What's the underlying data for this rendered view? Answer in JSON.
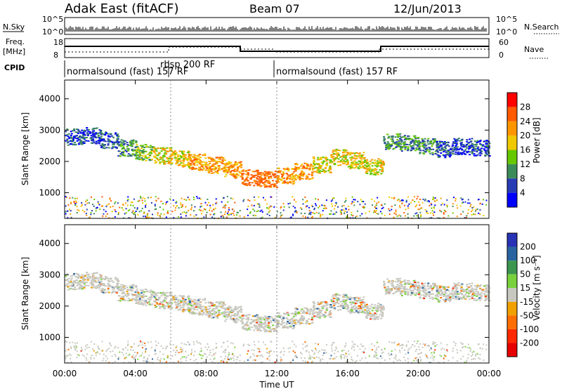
{
  "header": {
    "station": "Adak East (fitACF)",
    "beam": "Beam 07",
    "date": "12/Jun/2013"
  },
  "top_panels": {
    "nsky_label": "N.Sky",
    "nsearch_label": "N.Search",
    "nsky_ticks": [
      "10^5",
      "10^0"
    ],
    "nsky_right_ticks": [
      "10^5",
      "10^0"
    ],
    "freq_label_line1": "Freq.",
    "freq_label_line2": "[MHz]",
    "freq_ticks": [
      "18",
      "8"
    ],
    "nave_label": "Nave",
    "nave_ticks": [
      "60",
      "0"
    ],
    "cpid_label": "CPID",
    "cpid_segments": [
      {
        "label": "normalsound (fast) 157 RF",
        "start_h": 0,
        "end_h": 6
      },
      {
        "label": "rbsp 200 RF",
        "start_h": 6,
        "end_h": 12
      },
      {
        "label": "normalsound (fast) 157 RF",
        "start_h": 12,
        "end_h": 24
      }
    ]
  },
  "power_colorbar": {
    "label": "Power [dB]",
    "ticks": [
      "28",
      "24",
      "20",
      "16",
      "12",
      "8",
      "4"
    ],
    "colors": [
      "#ff0000",
      "#ff5a00",
      "#ff9600",
      "#f0c800",
      "#66c800",
      "#3c8c5a",
      "#283cb4",
      "#0000ff"
    ]
  },
  "velocity_colorbar": {
    "label": "Velocity [m s⁻¹]",
    "ticks": [
      "200",
      "100",
      "50",
      "15",
      "-15",
      "-50",
      "-100",
      "-200"
    ],
    "colors": [
      "#2832b4",
      "#2864a0",
      "#3c9650",
      "#78d23c",
      "#c8c8c0",
      "#f0a000",
      "#ff6e00",
      "#ff2800",
      "#e60000"
    ]
  },
  "axes": {
    "ylabel": "Slant Range [km]",
    "xlabel": "Time UT",
    "yticks": [
      "4000",
      "3000",
      "2000",
      "1000"
    ],
    "xticks": [
      "00:00",
      "04:00",
      "08:00",
      "12:00",
      "16:00",
      "20:00",
      "00:00"
    ]
  },
  "chart_data": [
    {
      "type": "heatmap",
      "title": "Adak East (fitACF) Beam 07 12/Jun/2013",
      "panel": "power",
      "xlabel": "Time UT",
      "ylabel": "Slant Range [km]",
      "xlim_hours": [
        0,
        24
      ],
      "ylim_km": [
        180,
        4600
      ],
      "value_label": "Power [dB]",
      "scatter_bands": [
        {
          "t": 0.5,
          "r": 2800,
          "level": 1
        },
        {
          "t": 1.5,
          "r": 2850,
          "level": 1
        },
        {
          "t": 2.5,
          "r": 2700,
          "level": 1
        },
        {
          "t": 3.5,
          "r": 2450,
          "level": 2
        },
        {
          "t": 4.5,
          "r": 2300,
          "level": 3
        },
        {
          "t": 5.5,
          "r": 2200,
          "level": 4
        },
        {
          "t": 6.5,
          "r": 2100,
          "level": 4
        },
        {
          "t": 7.5,
          "r": 2000,
          "level": 5
        },
        {
          "t": 8.5,
          "r": 1900,
          "level": 5
        },
        {
          "t": 9.5,
          "r": 1750,
          "level": 5
        },
        {
          "t": 10.5,
          "r": 1500,
          "level": 6
        },
        {
          "t": 11.5,
          "r": 1450,
          "level": 6
        },
        {
          "t": 12.5,
          "r": 1550,
          "level": 5
        },
        {
          "t": 13.5,
          "r": 1700,
          "level": 5
        },
        {
          "t": 14.5,
          "r": 1900,
          "level": 4
        },
        {
          "t": 15.5,
          "r": 2150,
          "level": 4
        },
        {
          "t": 16.5,
          "r": 2050,
          "level": 4
        },
        {
          "t": 17.5,
          "r": 1850,
          "level": 4
        },
        {
          "t": 18.5,
          "r": 2650,
          "level": 2
        },
        {
          "t": 19.5,
          "r": 2600,
          "level": 2
        },
        {
          "t": 20.5,
          "r": 2500,
          "level": 2
        },
        {
          "t": 21.5,
          "r": 2400,
          "level": 1
        },
        {
          "t": 22.5,
          "r": 2500,
          "level": 1
        },
        {
          "t": 23.5,
          "r": 2450,
          "level": 1
        }
      ]
    },
    {
      "type": "heatmap",
      "panel": "velocity",
      "xlabel": "Time UT",
      "ylabel": "Slant Range [km]",
      "xlim_hours": [
        0,
        24
      ],
      "ylim_km": [
        180,
        4600
      ],
      "value_label": "Velocity [m s⁻¹]",
      "dominant_value": "-15 to 15"
    }
  ]
}
